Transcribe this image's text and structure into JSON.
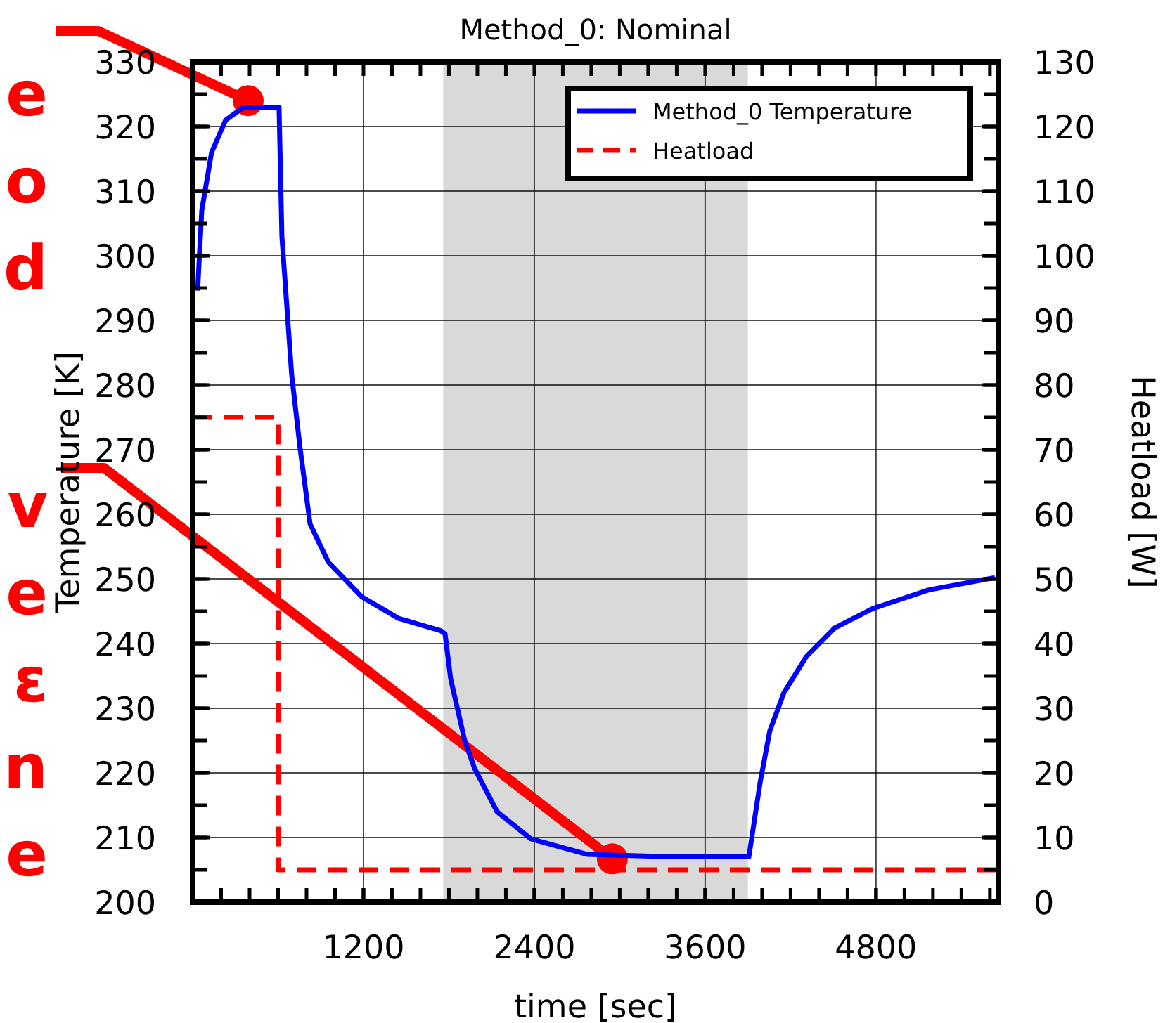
{
  "chart_data": {
    "type": "line",
    "title": "Method_0: Nominal",
    "xlabel": "time [sec]",
    "ylabel": "Temperature [K]",
    "y2label": "Heatload [W]",
    "xlim": [
      0,
      5660
    ],
    "xticks": [
      1200,
      2400,
      3600,
      4800
    ],
    "ylim": [
      200,
      330
    ],
    "yticks": [
      200,
      210,
      220,
      230,
      240,
      250,
      260,
      270,
      280,
      290,
      300,
      310,
      320,
      330
    ],
    "y2lim": [
      0,
      130
    ],
    "y2ticks": [
      0,
      10,
      20,
      30,
      40,
      50,
      60,
      70,
      80,
      90,
      100,
      110,
      120,
      130
    ],
    "grid": true,
    "legend": "top right",
    "series": [
      {
        "name": "Method_0 Temperature",
        "color": "#0000ff",
        "line_style": "solid",
        "x": [
          35,
          64,
          133,
          232,
          360,
          607,
          627,
          696,
          756,
          825,
          953,
          1190,
          1447,
          1743,
          1773,
          1812,
          1911,
          1980,
          2138,
          2375,
          2770,
          3393,
          3907,
          3986,
          4054,
          4153,
          4311,
          4509,
          4775,
          5170,
          5635
        ],
        "values": [
          294.6,
          307,
          316,
          321,
          323,
          323,
          303,
          281.5,
          270,
          258.5,
          252.6,
          247.2,
          243.9,
          242,
          241.5,
          234.6,
          225,
          220.7,
          214,
          209.8,
          207.4,
          207,
          207,
          218.5,
          226.5,
          232.4,
          238,
          242.4,
          245.4,
          248.3,
          250.2
        ]
      },
      {
        "name": "Heatload",
        "color": "#ff0000",
        "line_style": "dashed",
        "axis": "y2",
        "x": [
          0,
          600,
          600,
          5660
        ],
        "values": [
          75,
          75,
          5,
          5
        ]
      }
    ],
    "bands": [
      {
        "axis": "x",
        "from": 1760,
        "to": 3900,
        "color": "#d9d9d9"
      }
    ],
    "annotations": [
      {
        "text": "e\no\nd",
        "x": 390,
        "y": 324
      },
      {
        "text": "v\ne\nε\nn\ne",
        "x": 2948,
        "y": 206.7
      }
    ]
  }
}
